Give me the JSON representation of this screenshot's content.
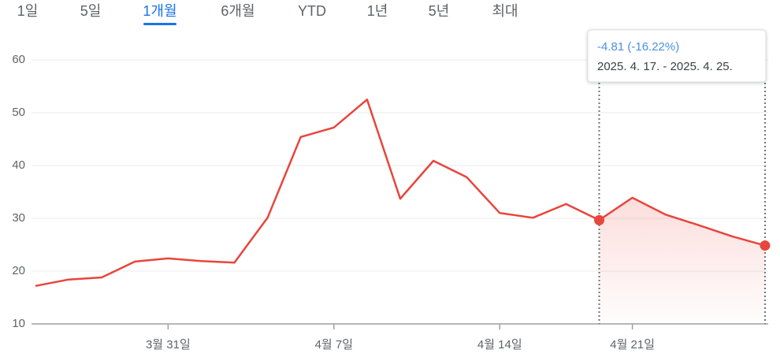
{
  "tabs": {
    "items": [
      "1일",
      "5일",
      "1개월",
      "6개월",
      "YTD",
      "1년",
      "5년",
      "최대"
    ],
    "selected": 2
  },
  "chart_data": {
    "type": "line",
    "categories": [
      null,
      null,
      null,
      null,
      "3월 31일",
      null,
      null,
      null,
      null,
      "4월 7일",
      null,
      null,
      null,
      null,
      "4월 14일",
      null,
      null,
      null,
      "4월 21일",
      null,
      null,
      null,
      null
    ],
    "series": [
      {
        "color": "#e8453c",
        "values": [
          17.2,
          18.4,
          18.8,
          21.8,
          22.4,
          21.9,
          21.6,
          30.1,
          45.4,
          47.2,
          52.5,
          33.7,
          40.9,
          37.8,
          31.0,
          30.1,
          32.7,
          29.65,
          33.9,
          30.7,
          28.7,
          26.6,
          24.84
        ]
      }
    ],
    "ylim": [
      10,
      60
    ],
    "yticks": [
      10,
      20,
      30,
      40,
      50,
      60
    ],
    "grid": true,
    "selection": [
      17,
      22
    ],
    "annotation": {
      "change": "-4.81 (-16.22%)",
      "range": "2025. 4. 17. - 2025. 4. 25."
    }
  }
}
